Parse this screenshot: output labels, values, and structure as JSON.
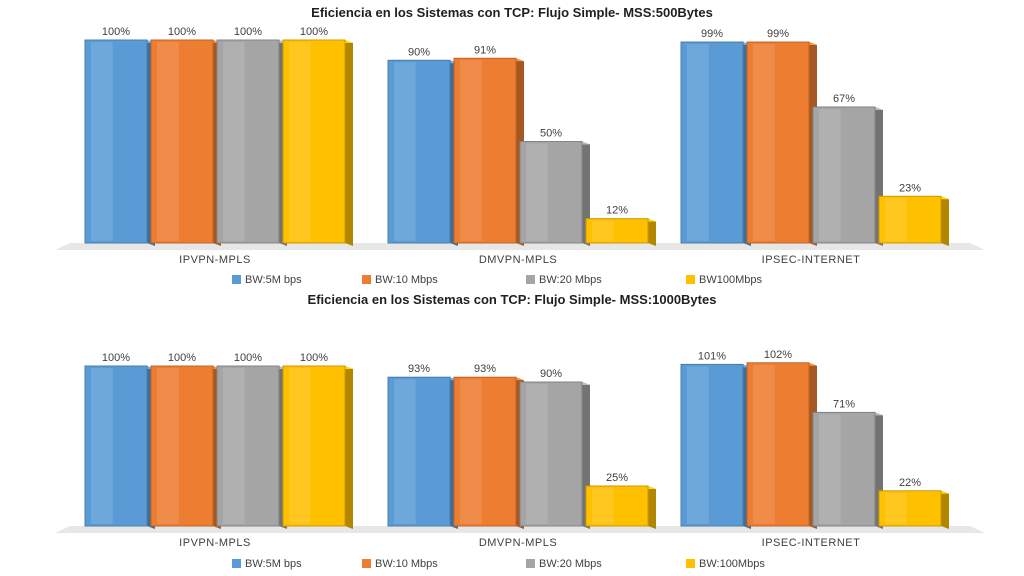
{
  "colors": {
    "BW:5Mbps": "#5b9bd5",
    "BW:10Mbps": "#ed7d31",
    "BW:20Mbps": "#a5a5a5",
    "BW100Mbps": "#ffc000"
  },
  "chart_data": [
    {
      "type": "bar",
      "title": "Eficiencia en los Sistemas  con TCP: Flujo Simple- MSS:500Bytes",
      "categories": [
        "IPVPN-MPLS",
        "DMVPN-MPLS",
        "IPSEC-INTERNET"
      ],
      "series": [
        {
          "name": "BW:5M bps",
          "values": [
            100,
            90,
            99
          ],
          "labels": [
            "100%",
            "90%",
            "99%"
          ]
        },
        {
          "name": "BW:10 Mbps",
          "values": [
            100,
            91,
            99
          ],
          "labels": [
            "100%",
            "91%",
            "99%"
          ]
        },
        {
          "name": "BW:20 Mbps",
          "values": [
            100,
            50,
            67
          ],
          "labels": [
            "100%",
            "50%",
            "67%"
          ]
        },
        {
          "name": "BW100Mbps",
          "values": [
            100,
            12,
            23
          ],
          "labels": [
            "100%",
            "12%",
            "23%"
          ]
        }
      ],
      "ylim": [
        0,
        100
      ],
      "legend": "bottom"
    },
    {
      "type": "bar",
      "title": "Eficiencia en los Sistemas  con TCP: Flujo Simple- MSS:1000Bytes",
      "categories": [
        "IPVPN-MPLS",
        "DMVPN-MPLS",
        "IPSEC-INTERNET"
      ],
      "series": [
        {
          "name": "BW:5M bps",
          "values": [
            100,
            93,
            101
          ],
          "labels": [
            "100%",
            "93%",
            "101%"
          ]
        },
        {
          "name": "BW:10 Mbps",
          "values": [
            100,
            93,
            102
          ],
          "labels": [
            "100%",
            "93%",
            "102%"
          ]
        },
        {
          "name": "BW:20 Mbps",
          "values": [
            100,
            90,
            71
          ],
          "labels": [
            "100%",
            "90%",
            "71%"
          ]
        },
        {
          "name": "BW:100Mbps",
          "values": [
            100,
            25,
            22
          ],
          "labels": [
            "100%",
            "25%",
            "22%"
          ]
        }
      ],
      "ylim": [
        0,
        102
      ],
      "legend": "bottom"
    }
  ]
}
